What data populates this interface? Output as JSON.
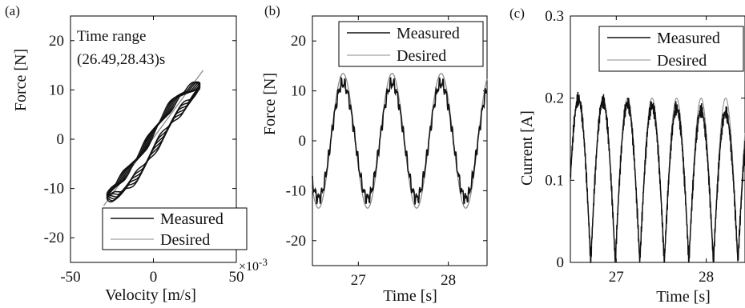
{
  "figure": {
    "panels": [
      {
        "id": "a",
        "label": "(a)",
        "annotation": [
          "Time range",
          "(26.49,28.43)s"
        ],
        "multiplier": "×10",
        "multiplier_exp": "-3",
        "legend": [
          "Measured",
          "Desired"
        ]
      },
      {
        "id": "b",
        "label": "(b)",
        "legend": [
          "Measured",
          "Desired"
        ]
      },
      {
        "id": "c",
        "label": "(c)",
        "legend": [
          "Measured",
          "Desired"
        ]
      }
    ]
  },
  "colors": {
    "measured": "#111111",
    "desired": "#8c8c8c",
    "frame": "#000000"
  },
  "chart_data": [
    {
      "type": "scatter",
      "xlabel": "Velocity  [m/s]",
      "ylabel": "Force  [N]",
      "xlim": [
        -50,
        50
      ],
      "ylim": [
        -25,
        25
      ],
      "xticks": [
        -50,
        0,
        50
      ],
      "yticks": [
        -20,
        -10,
        0,
        10,
        20
      ],
      "x_scale_note": "×10^-3",
      "grid": false,
      "legend_position": "bottom-right",
      "series": [
        {
          "name": "Measured",
          "style": "hysteresis loops, thick",
          "x": [
            -28,
            28
          ],
          "y": [
            -12,
            11
          ]
        },
        {
          "name": "Desired",
          "style": "straight line",
          "x": [
            -30,
            30
          ],
          "y": [
            -13.5,
            14
          ]
        }
      ]
    },
    {
      "type": "line",
      "xlabel": "Time  [s]",
      "ylabel": "Force  [N]",
      "xlim": [
        26.49,
        28.43
      ],
      "ylim": [
        -25,
        25
      ],
      "xticks": [
        27,
        28
      ],
      "yticks": [
        -20,
        -10,
        0,
        10,
        20
      ],
      "grid": false,
      "legend_position": "top-right",
      "series": [
        {
          "name": "Measured",
          "waveform": "sine",
          "amplitude": 11.5,
          "period": 0.545,
          "peaks": [
            26.83,
            27.37,
            27.92
          ]
        },
        {
          "name": "Desired",
          "waveform": "sine",
          "amplitude": 13.5,
          "period": 0.545,
          "peaks": [
            26.83,
            27.37,
            27.92
          ]
        }
      ]
    },
    {
      "type": "line",
      "xlabel": "Time  [s]",
      "ylabel": "Current  [A]",
      "xlim": [
        26.49,
        28.43
      ],
      "ylim": [
        0,
        0.3
      ],
      "xticks": [
        27,
        28
      ],
      "yticks": [
        0,
        0.1,
        0.2,
        0.3
      ],
      "grid": false,
      "legend_position": "top-right",
      "series": [
        {
          "name": "Measured",
          "waveform": "rectified sine",
          "peak": 0.2,
          "period": 0.2725,
          "first_peak": 26.58,
          "peak_decay_to": 0.18
        },
        {
          "name": "Desired",
          "waveform": "rectified sine",
          "peak": 0.2,
          "period": 0.2725,
          "first_peak": 26.58
        }
      ]
    }
  ]
}
